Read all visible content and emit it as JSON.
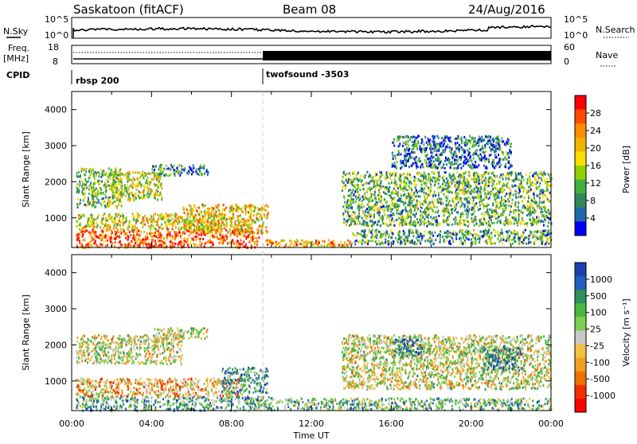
{
  "header": {
    "station": "Saskatoon (fitACF)",
    "beam": "Beam 08",
    "date": "24/Aug/2016"
  },
  "summary": {
    "nsky_label": "N.Sky",
    "nsearch_label": "N.Search",
    "freq_label_1": "Freq.",
    "freq_label_2": "[MHz]",
    "nave_label": "Nave",
    "cpid_label": "CPID",
    "left_ticks_top": [
      "10^5",
      "10^0"
    ],
    "right_ticks_top": [
      "10^5",
      "10^0"
    ],
    "left_ticks_freq": [
      "18",
      "8"
    ],
    "right_ticks_nave": [
      "60",
      "0"
    ],
    "cpid_segments": [
      {
        "name": "rbsp 200",
        "start_hour": 0
      },
      {
        "name": "twofsound -3503",
        "start_hour": 9.5
      }
    ]
  },
  "chart_data": [
    {
      "type": "heatmap",
      "parameter": "Power",
      "units": "dB",
      "xlabel": "",
      "ylabel": "Slant Range [km]",
      "xlim": [
        0,
        24
      ],
      "ylim": [
        180,
        4500
      ],
      "yticks": [
        1000,
        2000,
        3000,
        4000
      ],
      "colorbar_label": "Power [dB]",
      "colorbar_ticks": [
        "28",
        "24",
        "20",
        "16",
        "12",
        "8",
        "4"
      ],
      "colorbar_colors": [
        "#ff0000",
        "#ff4a00",
        "#ff8c00",
        "#f0b400",
        "#ffdd00",
        "#90d000",
        "#40b040",
        "#308858",
        "#1e6aa8",
        "#0000ff"
      ],
      "scatter_regions": [
        {
          "x": [
            0.2,
            9.4
          ],
          "y": [
            200,
            700
          ],
          "level": 0.85
        },
        {
          "x": [
            0.2,
            7.5
          ],
          "y": [
            700,
            1150
          ],
          "level": 0.55
        },
        {
          "x": [
            5.5,
            9.8
          ],
          "y": [
            600,
            1400
          ],
          "level": 0.6
        },
        {
          "x": [
            0.2,
            2.5
          ],
          "y": [
            1300,
            2400
          ],
          "level": 0.4
        },
        {
          "x": [
            2.0,
            4.5
          ],
          "y": [
            1500,
            2300
          ],
          "level": 0.5
        },
        {
          "x": [
            4.0,
            6.8
          ],
          "y": [
            2200,
            2500
          ],
          "level": 0.25
        },
        {
          "x": [
            9.5,
            14.0
          ],
          "y": [
            220,
            420
          ],
          "level": 0.7
        },
        {
          "x": [
            14.0,
            24.0
          ],
          "y": [
            300,
            700
          ],
          "level": 0.3
        },
        {
          "x": [
            13.5,
            24.0
          ],
          "y": [
            800,
            2300
          ],
          "level": 0.35
        },
        {
          "x": [
            16.0,
            22.0
          ],
          "y": [
            2400,
            3300
          ],
          "level": 0.2
        }
      ]
    },
    {
      "type": "heatmap",
      "parameter": "Velocity",
      "units": "m s^-1",
      "xlabel": "Time UT",
      "ylabel": "Slant Range [km]",
      "xlim": [
        0,
        24
      ],
      "ylim": [
        180,
        4500
      ],
      "xticks": [
        "00:00",
        "04:00",
        "08:00",
        "12:00",
        "16:00",
        "20:00",
        "00:00"
      ],
      "yticks": [
        1000,
        2000,
        3000,
        4000
      ],
      "colorbar_label": "Velocity [m s⁻¹]",
      "colorbar_ticks": [
        "1000",
        "500",
        "100",
        "25",
        "-25",
        "-100",
        "-500",
        "-1000"
      ],
      "colorbar_colors": [
        "#1f3fb0",
        "#2060c0",
        "#2e8f5a",
        "#48b840",
        "#7cd050",
        "#c8c8c8",
        "#f0c040",
        "#f0a020",
        "#f07000",
        "#f03000",
        "#ff0000"
      ],
      "scatter_regions": [
        {
          "x": [
            0.2,
            10.0
          ],
          "y": [
            200,
            600
          ],
          "level": 0.7
        },
        {
          "x": [
            0.2,
            8.5
          ],
          "y": [
            600,
            1100
          ],
          "level": 0.35
        },
        {
          "x": [
            0.2,
            5.5
          ],
          "y": [
            1500,
            2300
          ],
          "level": 0.5
        },
        {
          "x": [
            4.0,
            6.8
          ],
          "y": [
            2200,
            2500
          ],
          "level": 0.5
        },
        {
          "x": [
            7.5,
            9.8
          ],
          "y": [
            700,
            1400
          ],
          "level": 0.75
        },
        {
          "x": [
            10.0,
            24.0
          ],
          "y": [
            220,
            550
          ],
          "level": 0.65
        },
        {
          "x": [
            13.5,
            24.0
          ],
          "y": [
            800,
            2300
          ],
          "level": 0.5
        },
        {
          "x": [
            16.0,
            17.5
          ],
          "y": [
            1700,
            2200
          ],
          "level": 0.85
        },
        {
          "x": [
            20.5,
            22.5
          ],
          "y": [
            1300,
            2000
          ],
          "level": 0.8
        }
      ]
    }
  ]
}
